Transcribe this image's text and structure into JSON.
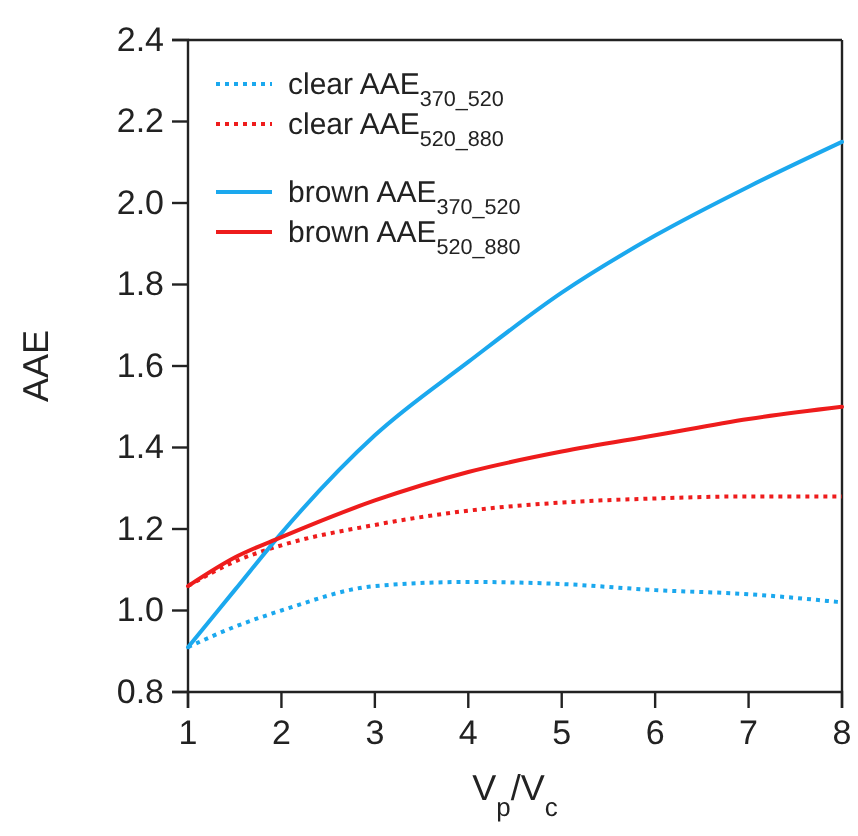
{
  "chart_data": {
    "type": "line",
    "xlabel": "V$_{p}$/V$_{c}$",
    "ylabel": "AAE",
    "xlim": [
      1,
      8
    ],
    "ylim": [
      0.8,
      2.4
    ],
    "xticks": [
      1,
      2,
      3,
      4,
      5,
      6,
      7,
      8
    ],
    "yticks": [
      {
        "value": 0.8,
        "label": "0.8"
      },
      {
        "value": 1.0,
        "label": "1.0"
      },
      {
        "value": 1.2,
        "label": "1.2"
      },
      {
        "value": 1.4,
        "label": "1.4"
      },
      {
        "value": 1.6,
        "label": "1.6"
      },
      {
        "value": 1.8,
        "label": "1.8"
      },
      {
        "value": 2.0,
        "label": "2.0"
      },
      {
        "value": 2.2,
        "label": "2.2"
      },
      {
        "value": 2.4,
        "label": "2.4"
      }
    ],
    "grid": false,
    "legend": "top left",
    "x": [
      1,
      1.5,
      2,
      3,
      4,
      5,
      6,
      7,
      8
    ],
    "series": [
      {
        "name": "clear AAE$_{370_520}$",
        "color": "#1ba8ee",
        "line_style": "dotted",
        "values": [
          0.91,
          0.96,
          1.0,
          1.06,
          1.07,
          1.065,
          1.05,
          1.04,
          1.02
        ]
      },
      {
        "name": "clear AAE$_{520_880}$",
        "color": "#ee1c1c",
        "line_style": "dotted",
        "values": [
          1.06,
          1.12,
          1.16,
          1.21,
          1.245,
          1.265,
          1.275,
          1.28,
          1.28
        ]
      },
      {
        "name": "brown AAE$_{370_520}$",
        "color": "#1ba8ee",
        "line_style": "solid",
        "values": [
          0.91,
          1.05,
          1.19,
          1.43,
          1.61,
          1.78,
          1.92,
          2.04,
          2.15
        ]
      },
      {
        "name": "brown AAE$_{520_880}$",
        "color": "#ee1c1c",
        "line_style": "solid",
        "values": [
          1.06,
          1.13,
          1.18,
          1.27,
          1.34,
          1.39,
          1.43,
          1.47,
          1.5
        ]
      }
    ]
  }
}
